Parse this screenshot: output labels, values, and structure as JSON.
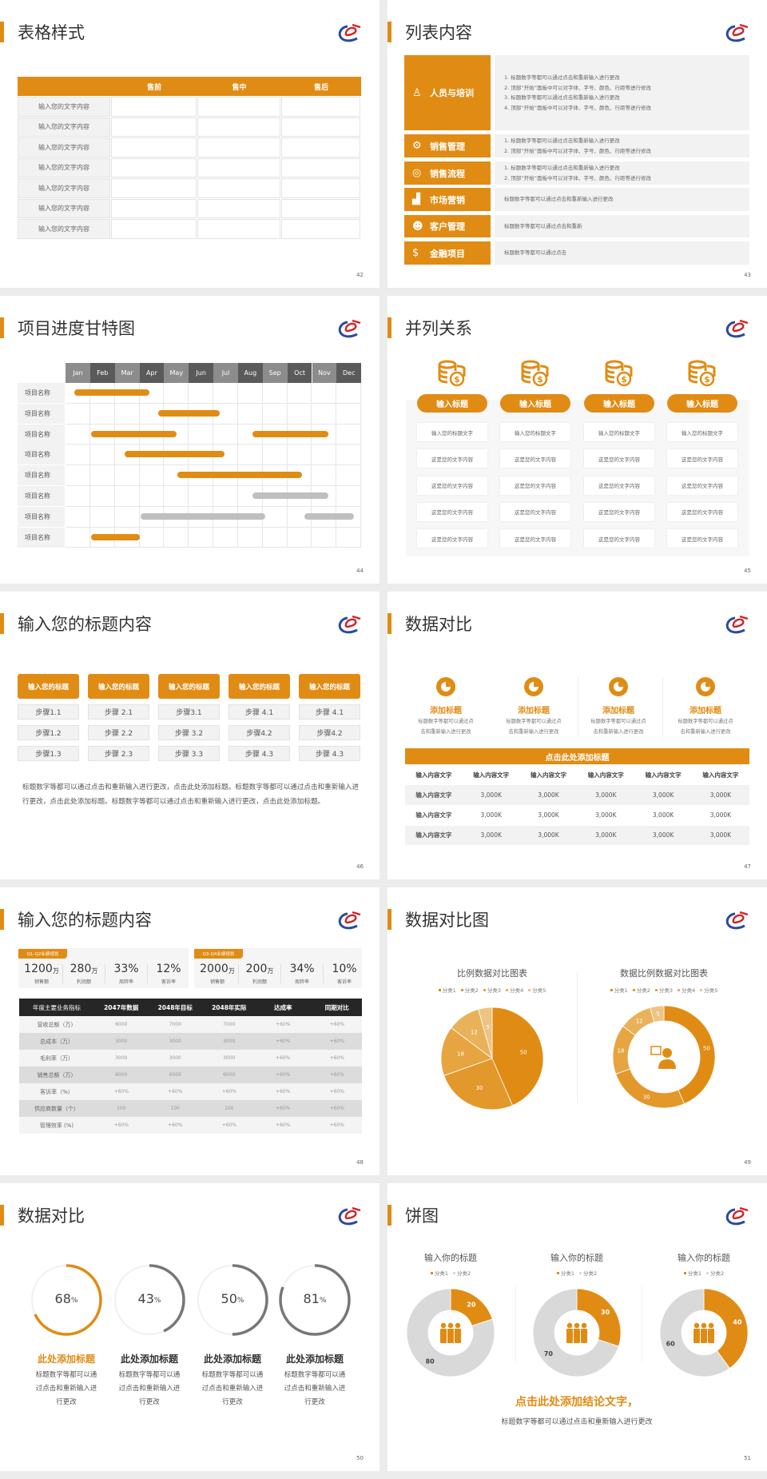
{
  "colors": {
    "accent": "#e08c14",
    "dark": "#262626",
    "gray_bar": "#bfbfbf",
    "ring_gray": "#777777",
    "light_gray": "#f2f2f2"
  },
  "slides": [
    {
      "page": "42",
      "title": "表格样式",
      "table": {
        "headers": [
          "",
          "售前",
          "售中",
          "售后"
        ],
        "rows": [
          "输入您的文字内容",
          "输入您的文字内容",
          "输入您的文字内容",
          "输入您的文字内容",
          "输入您的文字内容",
          "输入您的文字内容",
          "输入您的文字内容"
        ]
      }
    },
    {
      "page": "43",
      "title": "列表内容",
      "items": [
        {
          "icon": "training-icon",
          "glyph": "♙",
          "label": "人员与培训",
          "lines": [
            "1.  标题数字等都可以通过点击和重新输入进行更改",
            "2.  顶部“开始”面板中可以对字体、字号、颜色、行距等进行修改",
            "3.  标题数字等都可以通过点击和重新输入进行更改",
            "4.  顶部“开始”面板中可以对字体、字号、颜色、行距等进行修改"
          ]
        },
        {
          "icon": "sales-manager-icon",
          "glyph": "⚙",
          "label": "销售管理",
          "lines": [
            "1.  标题数字等都可以通过点击和重新输入进行更改",
            "2.  顶部“开始”面板中可以对字体、字号、颜色、行距等进行修改"
          ]
        },
        {
          "icon": "process-icon",
          "glyph": "◎",
          "label": "销售流程",
          "lines": [
            "1.  标题数字等都可以通过点击和重新输入进行更改",
            "2.  顶部“开始”面板中可以对字体、字号、颜色、行距等进行修改"
          ]
        },
        {
          "icon": "bar-chart-icon",
          "glyph": "▟",
          "label": "市场营销",
          "lines": [
            "标题数字等都可以通过点击和重新输入进行更改"
          ]
        },
        {
          "icon": "customers-icon",
          "glyph": "☻",
          "label": "客户管理",
          "lines": [
            "标题数字等都可以通过点击和重新"
          ]
        },
        {
          "icon": "finance-icon",
          "glyph": "$",
          "label": "金融项目",
          "lines": [
            "标题数字等都可以通过点击"
          ]
        }
      ]
    },
    {
      "page": "44",
      "title": "项目进度甘特图",
      "gantt": {
        "months": [
          "Jan",
          "Feb",
          "Mar",
          "Apr",
          "May",
          "Jun",
          "Jul",
          "Aug",
          "Sep",
          "Oct",
          "Nov",
          "Dec"
        ],
        "rows": [
          "项目名称",
          "项目名称",
          "项目名称",
          "项目名称",
          "项目名称",
          "项目名称",
          "项目名称",
          "项目名称"
        ],
        "bars": [
          {
            "row": 0,
            "start": 0.35,
            "end": 3.4,
            "status": "orange"
          },
          {
            "row": 1,
            "start": 3.75,
            "end": 6.25,
            "status": "orange"
          },
          {
            "row": 2,
            "start": 1.05,
            "end": 4.5,
            "status": "orange"
          },
          {
            "row": 2,
            "start": 7.6,
            "end": 10.65,
            "status": "orange"
          },
          {
            "row": 3,
            "start": 2.4,
            "end": 6.45,
            "status": "orange"
          },
          {
            "row": 4,
            "start": 4.55,
            "end": 9.6,
            "status": "orange"
          },
          {
            "row": 5,
            "start": 7.6,
            "end": 10.65,
            "status": "gray"
          },
          {
            "row": 6,
            "start": 3.05,
            "end": 8.1,
            "status": "gray"
          },
          {
            "row": 6,
            "start": 9.7,
            "end": 11.7,
            "status": "gray"
          },
          {
            "row": 7,
            "start": 1.05,
            "end": 3.0,
            "status": "orange"
          }
        ]
      }
    },
    {
      "page": "45",
      "title": "并列关系",
      "columns": [
        {
          "icon": "coins-icon",
          "title": "输入标题",
          "cells": [
            "输入您的标题文字",
            "这是您的文字内容",
            "这是您的文字内容",
            "这是您的文字内容",
            "这是您的文字内容"
          ]
        },
        {
          "icon": "coins-icon",
          "title": "输入标题",
          "cells": [
            "输入您的标题文字",
            "这是您的文字内容",
            "这是您的文字内容",
            "这是您的文字内容",
            "这是您的文字内容"
          ]
        },
        {
          "icon": "coins-icon",
          "title": "输入标题",
          "cells": [
            "输入您的标题文字",
            "这是您的文字内容",
            "这是您的文字内容",
            "这是您的文字内容",
            "这是您的文字内容"
          ]
        },
        {
          "icon": "coins-icon",
          "title": "输入标题",
          "cells": [
            "输入您的标题文字",
            "这是您的文字内容",
            "这是您的文字内容",
            "这是您的文字内容",
            "这是您的文字内容"
          ]
        }
      ]
    },
    {
      "page": "46",
      "title": "输入您的标题内容",
      "columns": [
        {
          "title": "输入您的标题",
          "steps": [
            "步骤1.1",
            "步骤1.2",
            "步骤1.3"
          ]
        },
        {
          "title": "输入您的标题",
          "steps": [
            "步骤 2.1",
            "步骤 2.2",
            "步骤 2.3"
          ]
        },
        {
          "title": "输入您的标题",
          "steps": [
            "步骤3.1",
            "步骤 3.2",
            "步骤 3.3"
          ]
        },
        {
          "title": "输入您的标题",
          "steps": [
            "步骤 4.1",
            "步骤4.2",
            "步骤 4.3"
          ]
        },
        {
          "title": "输入您的标题",
          "steps": [
            "步骤 4.1",
            "步骤4.2",
            "步骤 4.3"
          ]
        }
      ],
      "paragraph": "标题数字等都可以通过点击和重新输入进行更改，点击此处添加标题。标题数字等都可以通过点击和重新输入进行更改，点击此处添加标题。标题数字等都可以通过点击和重新输入进行更改，点击此处添加标题。"
    },
    {
      "page": "47",
      "title": "数据对比",
      "features": [
        {
          "icon": "pie-icon",
          "title": "添加标题",
          "desc": [
            "标题数字等都可以通过点",
            "击和重新输入进行更改"
          ]
        },
        {
          "icon": "pie-icon",
          "title": "添加标题",
          "desc": [
            "标题数字等都可以通过点",
            "击和重新输入进行更改"
          ]
        },
        {
          "icon": "pie-icon",
          "title": "添加标题",
          "desc": [
            "标题数字等都可以通过点",
            "击和重新输入进行更改"
          ]
        },
        {
          "icon": "pie-icon",
          "title": "添加标题",
          "desc": [
            "标题数字等都可以通过点",
            "击和重新输入进行更改"
          ]
        }
      ],
      "table": {
        "title": "点击此处添加标题",
        "headers": [
          "输入内容文字",
          "输入内容文字",
          "输入内容文字",
          "输入内容文字",
          "输入内容文字",
          "输入内容文字"
        ],
        "rows": [
          [
            "输入内容文字",
            "3,000K",
            "3,000K",
            "3,000K",
            "3,000K",
            "3,000K"
          ],
          [
            "输入内容文字",
            "3,000K",
            "3,000K",
            "3,000K",
            "3,000K",
            "3,000K"
          ],
          [
            "输入内容文字",
            "3,000K",
            "3,000K",
            "3,000K",
            "3,000K",
            "3,000K"
          ]
        ]
      }
    },
    {
      "page": "48",
      "title": "输入您的标题内容",
      "panels": [
        {
          "tag": "Q1-Q2业绩规划",
          "kpis": [
            {
              "value": "1200",
              "unit": "万",
              "label": "销售额"
            },
            {
              "value": "280",
              "unit": "万",
              "label": "利润额"
            },
            {
              "value": "33%",
              "unit": "",
              "label": "周转率"
            },
            {
              "value": "12%",
              "unit": "",
              "label": "客诉率"
            }
          ]
        },
        {
          "tag": "Q3-Q4业绩规划",
          "kpis": [
            {
              "value": "2000",
              "unit": "万",
              "label": "销售额"
            },
            {
              "value": "200",
              "unit": "万",
              "label": "利润额"
            },
            {
              "value": "34%",
              "unit": "",
              "label": "周转率"
            },
            {
              "value": "10%",
              "unit": "",
              "label": "客诉率"
            }
          ]
        }
      ],
      "table": {
        "headers": [
          "年度主要业务指标",
          "2047年数据",
          "2048年目标",
          "2048年实际",
          "达成率",
          "同期对比"
        ],
        "rows": [
          [
            "营收总额（万）",
            "6000",
            "7000",
            "7000",
            "+60%",
            "+60%"
          ],
          [
            "总成本（万）",
            "3000",
            "3000",
            "3000",
            "+60%",
            "+60%"
          ],
          [
            "毛利率（万）",
            "3000",
            "3000",
            "3000",
            "+60%",
            "+60%"
          ],
          [
            "销售总额（万）",
            "6000",
            "6000",
            "6000",
            "+60%",
            "+60%"
          ],
          [
            "客诉率（%）",
            "+60%",
            "+60%",
            "+60%",
            "+60%",
            "+60%"
          ],
          [
            "供应商数量（个）",
            "100",
            "100",
            "100",
            "+60%",
            "+60%"
          ],
          [
            "管理效率 (%)",
            "+60%",
            "+60%",
            "+60%",
            "+60%",
            "+60%"
          ]
        ]
      }
    },
    {
      "page": "49",
      "title": "数据对比图",
      "charts": [
        {
          "type": "pie",
          "title": "比例数据对比图表",
          "categories": [
            "分类1",
            "分类2",
            "分类3",
            "分类4",
            "分类5"
          ],
          "values": [
            50,
            30,
            18,
            12,
            5
          ],
          "colors": [
            "#e08c14",
            "#e3982b",
            "#e6a540",
            "#e9b25a",
            "#eec384"
          ],
          "legend": "top"
        },
        {
          "type": "donut",
          "title": "数据比例数据对比图表",
          "categories": [
            "分类1",
            "分类2",
            "分类3",
            "分类4",
            "分类5"
          ],
          "values": [
            50,
            30,
            18,
            12,
            5
          ],
          "colors": [
            "#e08c14",
            "#e3982b",
            "#e6a540",
            "#e9b25a",
            "#eec384"
          ],
          "legend": "top",
          "center_icon": "presenter-icon"
        }
      ]
    },
    {
      "page": "50",
      "title": "数据对比",
      "rings": [
        {
          "value": 68,
          "unit": "%",
          "title": "此处添加标题",
          "desc": [
            "标题数字等都可以通",
            "过点击和重新输入进",
            "行更改"
          ],
          "color": "#e08c14",
          "highlight": true
        },
        {
          "value": 43,
          "unit": "%",
          "title": "此处添加标题",
          "desc": [
            "标题数字等都可以通",
            "过点击和重新输入进",
            "行更改"
          ],
          "color": "#777777",
          "highlight": false
        },
        {
          "value": 50,
          "unit": "%",
          "title": "此处添加标题",
          "desc": [
            "标题数字等都可以通",
            "过点击和重新输入进",
            "行更改"
          ],
          "color": "#777777",
          "highlight": false
        },
        {
          "value": 81,
          "unit": "%",
          "title": "此处添加标题",
          "desc": [
            "标题数字等都可以通",
            "过点击和重新输入进",
            "行更改"
          ],
          "color": "#777777",
          "highlight": false
        }
      ]
    },
    {
      "page": "51",
      "title": "饼图",
      "charts": [
        {
          "type": "donut",
          "title": "输入你的标题",
          "categories": [
            "分类1",
            "分类2"
          ],
          "values": [
            20,
            80
          ],
          "colors": [
            "#e08c14",
            "#d9d9d9"
          ],
          "center_icon": "team-icon"
        },
        {
          "type": "donut",
          "title": "输入你的标题",
          "categories": [
            "分类1",
            "分类2"
          ],
          "values": [
            30,
            70
          ],
          "colors": [
            "#e08c14",
            "#d9d9d9"
          ],
          "center_icon": "team-icon"
        },
        {
          "type": "donut",
          "title": "输入你的标题",
          "categories": [
            "分类1",
            "分类2"
          ],
          "values": [
            40,
            60
          ],
          "colors": [
            "#e08c14",
            "#d9d9d9"
          ],
          "center_icon": "team-icon"
        }
      ],
      "conclusion": "点击此处添加结论文字，",
      "subtitle": "标题数字等都可以通过点击和重新输入进行更改"
    }
  ]
}
